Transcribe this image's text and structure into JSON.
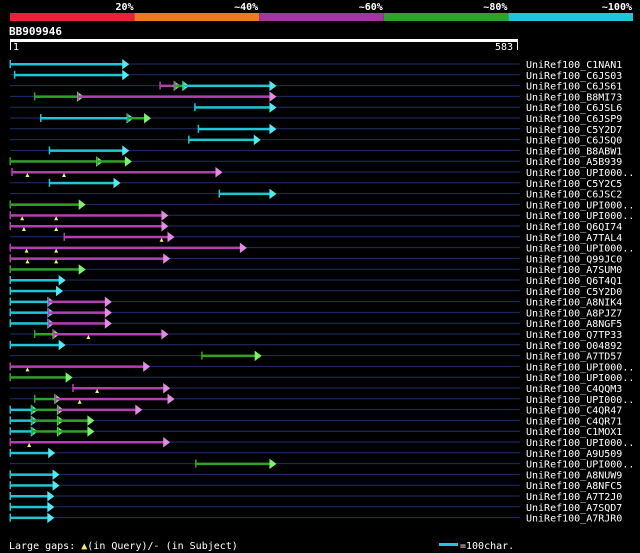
{
  "scale": {
    "labels": [
      "20%",
      "~40%",
      "~60%",
      "~80%",
      "~100%"
    ],
    "colors": [
      "#e8213a",
      "#ec7a1e",
      "#a3359e",
      "#2ea32a",
      "#1ec6d6"
    ]
  },
  "query": {
    "name": "BB909946",
    "start_label": "1",
    "end_label": "583",
    "length": 583
  },
  "colors": {
    "cyan": "#1ec6d6",
    "magenta": "#b340b3",
    "green": "#2ea32a",
    "cyan_head": "#55e8f4",
    "magenta_head": "#e08ce0",
    "green_head": "#7cf070",
    "grid": "#1f2f6a",
    "gap_marker": "#f4f070"
  },
  "hits": [
    {
      "name": "UniRef100_C1NAN1",
      "segs": [
        [
          1,
          131,
          "cyan"
        ]
      ],
      "gaps": []
    },
    {
      "name": "UniRef100_C6JS03",
      "segs": [
        [
          6,
          131,
          "cyan"
        ]
      ],
      "gaps": []
    },
    {
      "name": "UniRef100_C6JS61",
      "segs": [
        [
          173,
          190,
          "magenta"
        ],
        [
          190,
          200,
          "green"
        ],
        [
          200,
          300,
          "cyan"
        ]
      ],
      "gaps": []
    },
    {
      "name": "UniRef100_B8MI73",
      "segs": [
        [
          29,
          79,
          "green"
        ],
        [
          79,
          300,
          "magenta"
        ]
      ],
      "gaps": []
    },
    {
      "name": "UniRef100_C6JSL6",
      "segs": [
        [
          213,
          300,
          "cyan"
        ]
      ],
      "gaps": []
    },
    {
      "name": "UniRef100_C6JSP9",
      "segs": [
        [
          36,
          136,
          "cyan"
        ],
        [
          136,
          156,
          "green"
        ]
      ],
      "gaps": []
    },
    {
      "name": "UniRef100_C5Y2D7",
      "segs": [
        [
          217,
          300,
          "cyan"
        ]
      ],
      "gaps": []
    },
    {
      "name": "UniRef100_C6JSQ0",
      "segs": [
        [
          206,
          282,
          "cyan"
        ]
      ],
      "gaps": []
    },
    {
      "name": "UniRef100_B8ABW1",
      "segs": [
        [
          46,
          131,
          "cyan"
        ]
      ],
      "gaps": []
    },
    {
      "name": "UniRef100_A5B939",
      "segs": [
        [
          1,
          101,
          "green"
        ],
        [
          101,
          134,
          "green"
        ]
      ],
      "gaps": []
    },
    {
      "name": "UniRef100_UPI000..",
      "label": "UniRef100_UPI000..",
      "segs": [
        [
          3,
          238,
          "magenta"
        ]
      ],
      "gaps": [
        21,
        63
      ]
    },
    {
      "name": "UniRef100_C5Y2C5",
      "segs": [
        [
          46,
          121,
          "cyan"
        ]
      ],
      "gaps": []
    },
    {
      "name": "UniRef100_C6JSC2",
      "segs": [
        [
          241,
          300,
          "cyan"
        ]
      ],
      "gaps": []
    },
    {
      "name": "UniRef100_UPI000..",
      "segs": [
        [
          1,
          81,
          "green"
        ]
      ],
      "gaps": []
    },
    {
      "name": "UniRef100_UPI000..",
      "segs": [
        [
          1,
          176,
          "magenta"
        ]
      ],
      "gaps": [
        15,
        54
      ]
    },
    {
      "name": "UniRef100_Q6QI74",
      "segs": [
        [
          1,
          176,
          "magenta"
        ]
      ],
      "gaps": [
        17,
        54
      ]
    },
    {
      "name": "UniRef100_A7TAL4",
      "segs": [
        [
          63,
          183,
          "magenta"
        ]
      ],
      "gaps": [
        175
      ]
    },
    {
      "name": "UniRef100_UPI000..",
      "segs": [
        [
          1,
          266,
          "magenta"
        ]
      ],
      "gaps": [
        20,
        54
      ]
    },
    {
      "name": "UniRef100_Q99JC0",
      "segs": [
        [
          1,
          178,
          "magenta"
        ]
      ],
      "gaps": [
        21,
        54
      ]
    },
    {
      "name": "UniRef100_A7SUM0",
      "segs": [
        [
          1,
          81,
          "green"
        ]
      ],
      "gaps": []
    },
    {
      "name": "UniRef100_Q6T4Q1",
      "segs": [
        [
          1,
          58,
          "cyan"
        ]
      ],
      "gaps": []
    },
    {
      "name": "UniRef100_C5Y2D0",
      "segs": [
        [
          1,
          55,
          "cyan"
        ]
      ],
      "gaps": []
    },
    {
      "name": "UniRef100_A8NIK4",
      "segs": [
        [
          1,
          45,
          "cyan"
        ],
        [
          45,
          111,
          "magenta"
        ]
      ],
      "gaps": []
    },
    {
      "name": "UniRef100_A8PJZ7",
      "segs": [
        [
          1,
          45,
          "cyan"
        ],
        [
          45,
          111,
          "magenta"
        ]
      ],
      "gaps": []
    },
    {
      "name": "UniRef100_A8NGF5",
      "segs": [
        [
          1,
          45,
          "cyan"
        ],
        [
          45,
          111,
          "magenta"
        ]
      ],
      "gaps": []
    },
    {
      "name": "UniRef100_Q7TP33",
      "segs": [
        [
          29,
          51,
          "green"
        ],
        [
          51,
          176,
          "magenta"
        ]
      ],
      "gaps": [
        91
      ]
    },
    {
      "name": "UniRef100_O04892",
      "segs": [
        [
          1,
          58,
          "cyan"
        ]
      ],
      "gaps": []
    },
    {
      "name": "UniRef100_A7TD57",
      "segs": [
        [
          221,
          283,
          "green"
        ]
      ],
      "gaps": []
    },
    {
      "name": "UniRef100_UPI000..",
      "segs": [
        [
          1,
          155,
          "magenta"
        ]
      ],
      "gaps": [
        21
      ]
    },
    {
      "name": "UniRef100_UPI000..",
      "segs": [
        [
          1,
          66,
          "green"
        ]
      ],
      "gaps": []
    },
    {
      "name": "UniRef100_C4QQM3",
      "segs": [
        [
          73,
          178,
          "magenta"
        ]
      ],
      "gaps": [
        101
      ]
    },
    {
      "name": "UniRef100_UPI000..",
      "segs": [
        [
          29,
          53,
          "green"
        ],
        [
          53,
          183,
          "magenta"
        ]
      ],
      "gaps": [
        81
      ]
    },
    {
      "name": "UniRef100_C4QR47",
      "segs": [
        [
          1,
          26,
          "cyan"
        ],
        [
          26,
          56,
          "green"
        ],
        [
          56,
          146,
          "magenta"
        ]
      ],
      "gaps": []
    },
    {
      "name": "UniRef100_C4QR71",
      "segs": [
        [
          1,
          26,
          "cyan"
        ],
        [
          26,
          56,
          "green"
        ],
        [
          56,
          91,
          "green"
        ]
      ],
      "gaps": []
    },
    {
      "name": "UniRef100_C1MOX1",
      "segs": [
        [
          1,
          26,
          "cyan"
        ],
        [
          26,
          56,
          "green"
        ],
        [
          56,
          91,
          "green"
        ]
      ],
      "gaps": []
    },
    {
      "name": "UniRef100_UPI000..",
      "segs": [
        [
          1,
          178,
          "magenta"
        ]
      ],
      "gaps": [
        23
      ]
    },
    {
      "name": "UniRef100_A9U509",
      "segs": [
        [
          1,
          46,
          "cyan"
        ]
      ],
      "gaps": []
    },
    {
      "name": "UniRef100_UPI000..",
      "segs": [
        [
          214,
          300,
          "green"
        ]
      ],
      "gaps": []
    },
    {
      "name": "UniRef100_A8NUW9",
      "segs": [
        [
          1,
          51,
          "cyan"
        ]
      ],
      "gaps": []
    },
    {
      "name": "UniRef100_A8NFC5",
      "segs": [
        [
          1,
          51,
          "cyan"
        ]
      ],
      "gaps": []
    },
    {
      "name": "UniRef100_A7T2J0",
      "segs": [
        [
          1,
          45,
          "cyan"
        ]
      ],
      "gaps": []
    },
    {
      "name": "UniRef100_A7SQD7",
      "segs": [
        [
          1,
          45,
          "cyan"
        ]
      ],
      "gaps": []
    },
    {
      "name": "UniRef100_A7RJR0",
      "segs": [
        [
          1,
          45,
          "cyan"
        ]
      ],
      "gaps": []
    }
  ],
  "footer": {
    "gaps_prefix": "Large gaps: ",
    "gaps_in_query": "(in Query)/",
    "gaps_subject_symbol": "-",
    "gaps_in_subject": " (in Subject)",
    "scale_legend": "=100char."
  }
}
